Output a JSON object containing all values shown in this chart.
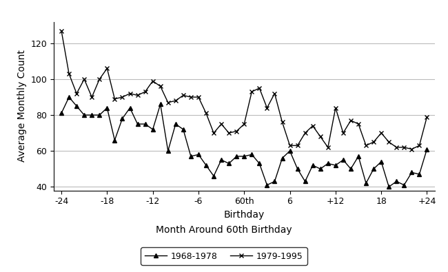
{
  "x_values": [
    -24,
    -23,
    -22,
    -21,
    -20,
    -19,
    -18,
    -17,
    -16,
    -15,
    -14,
    -13,
    -12,
    -11,
    -10,
    -9,
    -8,
    -7,
    -6,
    -5,
    -4,
    -3,
    -2,
    -1,
    0,
    1,
    2,
    3,
    4,
    5,
    6,
    7,
    8,
    9,
    10,
    11,
    12,
    13,
    14,
    15,
    16,
    17,
    18,
    19,
    20,
    21,
    22,
    23,
    24
  ],
  "series1_name": "1968-1978",
  "series2_name": "1979-1995",
  "series1_values": [
    81,
    90,
    85,
    80,
    80,
    80,
    84,
    66,
    78,
    84,
    75,
    75,
    72,
    86,
    60,
    75,
    72,
    57,
    58,
    52,
    46,
    55,
    53,
    57,
    57,
    58,
    53,
    41,
    43,
    56,
    60,
    50,
    43,
    52,
    50,
    53,
    52,
    55,
    50,
    57,
    42,
    50,
    54,
    40,
    43,
    41,
    48,
    47,
    61
  ],
  "series2_values": [
    127,
    103,
    92,
    100,
    90,
    100,
    106,
    89,
    90,
    92,
    91,
    93,
    99,
    96,
    87,
    88,
    91,
    90,
    90,
    81,
    70,
    75,
    70,
    71,
    75,
    93,
    95,
    84,
    92,
    76,
    63,
    63,
    70,
    74,
    68,
    62,
    84,
    70,
    77,
    75,
    63,
    65,
    70,
    65,
    62,
    62,
    61,
    63,
    79
  ],
  "xtick_positions": [
    -24,
    -18,
    -12,
    -6,
    0,
    6,
    12,
    18,
    24
  ],
  "xtick_labels": [
    "-24",
    "-18",
    "-12",
    "-6",
    "60th",
    "6",
    "+12",
    "18",
    "+24"
  ],
  "ytick_positions": [
    40,
    60,
    80,
    100,
    120
  ],
  "ylim": [
    38,
    132
  ],
  "xlim": [
    -25,
    25
  ],
  "ylabel": "Average Monthly Count",
  "xlabel": "Birthday",
  "subtitle": "Month Around 60th Birthday",
  "series1_marker": "^",
  "series2_marker": "x",
  "color": "#000000",
  "background": "#ffffff",
  "grid_color": "#bbbbbb",
  "marker_size": 5,
  "line_width": 1.0,
  "xlabel_fontsize": 10,
  "ylabel_fontsize": 10,
  "tick_fontsize": 9,
  "legend_fontsize": 9,
  "subtitle_fontsize": 10
}
